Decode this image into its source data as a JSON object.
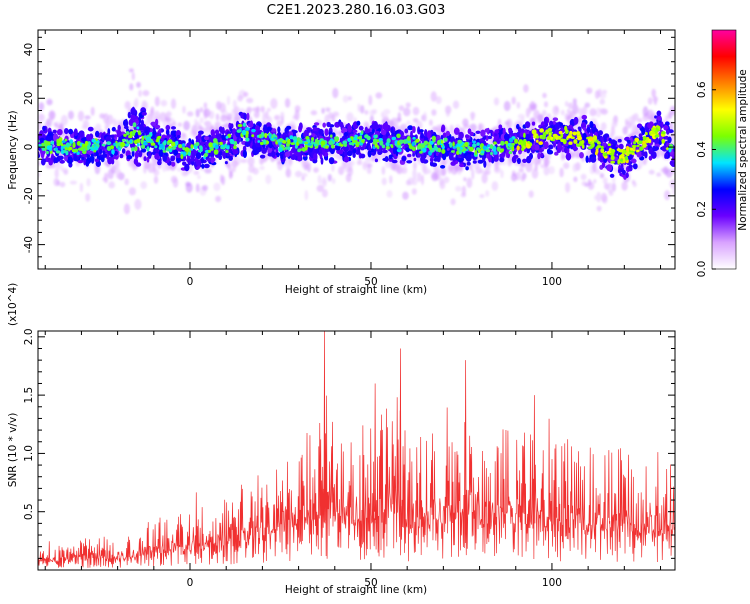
{
  "title": "C2E1.2023.280.16.03.G03",
  "chart_data": [
    {
      "type": "heatmap",
      "xlabel": "Height of straight line (km)",
      "ylabel": "Frequency (Hz)",
      "xlim": [
        -42,
        134
      ],
      "ylim": [
        -50,
        48
      ],
      "x_ticks": [
        0,
        50,
        100
      ],
      "y_ticks": [
        -40,
        -20,
        0,
        20,
        40
      ],
      "colorbar": {
        "label": "Normalized spectral amplitude",
        "range": [
          0.0,
          0.8
        ],
        "ticks": [
          "0.0",
          "0.2",
          "0.4",
          "0.6"
        ],
        "colors": [
          "#ffffff",
          "#d9a3ff",
          "#6a00ff",
          "#0000ff",
          "#00e5ff",
          "#7cff00",
          "#ffff00",
          "#ff8000",
          "#ff0000",
          "#ff00a0"
        ]
      },
      "ridge": {
        "x": [
          -42,
          -30,
          -20,
          -15,
          -10,
          0,
          10,
          15,
          20,
          30,
          40,
          50,
          60,
          70,
          80,
          90,
          95,
          100,
          110,
          115,
          120,
          125,
          130,
          134
        ],
        "center_freq": [
          1,
          0,
          1,
          5,
          2,
          -2,
          1,
          6,
          3,
          1,
          2,
          3,
          1,
          0,
          -1,
          1,
          3,
          5,
          3,
          -2,
          -5,
          2,
          7,
          -5
        ],
        "half_width": [
          7,
          8,
          7,
          14,
          9,
          8,
          9,
          10,
          8,
          8,
          8,
          8,
          8,
          8,
          8,
          8,
          9,
          9,
          9,
          10,
          9,
          9,
          9,
          8
        ]
      },
      "grid": false
    },
    {
      "type": "line",
      "xlabel": "Height of straight line (km)",
      "ylabel": "SNR (10 * v/v)",
      "y_multiplier": "(x10^4)",
      "xlim": [
        -42,
        134
      ],
      "ylim": [
        0,
        2.05
      ],
      "x_ticks": [
        0,
        50,
        100
      ],
      "y_ticks": [
        0.5,
        1.0,
        1.5,
        2.0
      ],
      "color": "#f03030",
      "envelope": {
        "x": [
          -42,
          -30,
          -20,
          -15,
          -12,
          0,
          10,
          20,
          25,
          30,
          35,
          37,
          40,
          50,
          58,
          60,
          70,
          76,
          80,
          90,
          95,
          100,
          110,
          120,
          125,
          130,
          134
        ],
        "peak": [
          0.25,
          0.35,
          0.38,
          0.38,
          0.55,
          0.65,
          0.85,
          1.05,
          1.3,
          1.4,
          1.75,
          2.05,
          1.55,
          1.6,
          1.9,
          1.45,
          1.6,
          1.8,
          1.5,
          1.55,
          1.55,
          1.45,
          1.35,
          1.3,
          1.25,
          1.25,
          1.2
        ]
      },
      "grid": false
    }
  ]
}
